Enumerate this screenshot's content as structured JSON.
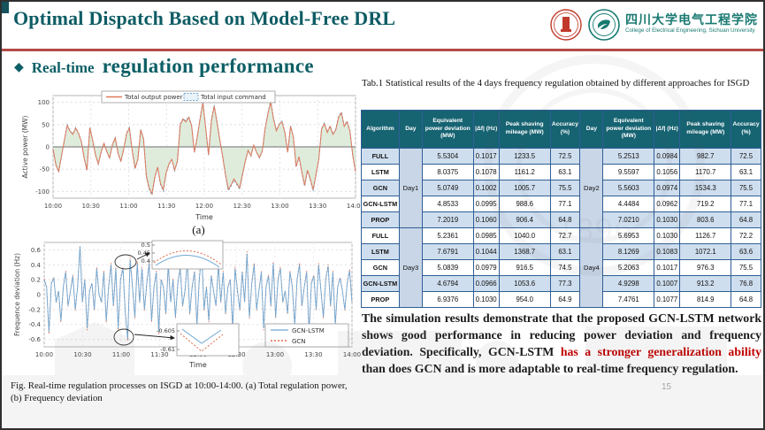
{
  "slide": {
    "title": "Optimal Dispatch Based on Model-Free DRL",
    "bullet_icon": "◆",
    "section_title_prefix": "Real-time",
    "section_title_rest": "regulation performance",
    "logo_text_cn": "四川大学电气工程学院",
    "logo_text_en": "College of Electrical Engineering, Sichuan University",
    "page_number": "15",
    "watermark_year": "1896"
  },
  "figure": {
    "sublabel_a": "(a)",
    "caption": "Fig. Real-time regulation processes on ISGD at 10:00-14:00. (a) Total regulation power, (b) Frequency deviation"
  },
  "table": {
    "caption": "Tab.1 Statistical results of the 4 days frequency regulation obtained by different approaches for ISGD",
    "columns": [
      "Algorithm",
      "Day",
      "Equivalent power deviation (MW)",
      "|Δf| (Hz)",
      "Peak shaving mileage (MW)",
      "Accuracy (%)",
      "Day",
      "Equivalent power deviation (MW)",
      "|Δf| (Hz)",
      "Peak shaving mileage (MW)",
      "Accuracy (%)"
    ],
    "groups": [
      {
        "left_day": "Day1",
        "right_day": "Day2",
        "rows": [
          {
            "algorithm": "FULL",
            "left": [
              "5.5304",
              "0.1017",
              "1233.5",
              "72.5"
            ],
            "right": [
              "5.2513",
              "0.0984",
              "982.7",
              "72.5"
            ]
          },
          {
            "algorithm": "LSTM",
            "left": [
              "8.0375",
              "0.1078",
              "1161.2",
              "63.1"
            ],
            "right": [
              "9.5597",
              "0.1056",
              "1170.7",
              "63.1"
            ]
          },
          {
            "algorithm": "GCN",
            "left": [
              "5.0749",
              "0.1002",
              "1005.7",
              "75.5"
            ],
            "right": [
              "5.5603",
              "0.0974",
              "1534.3",
              "75.5"
            ]
          },
          {
            "algorithm": "GCN-LSTM",
            "left": [
              "4.8533",
              "0.0995",
              "988.6",
              "77.1"
            ],
            "right": [
              "4.4484",
              "0.0962",
              "719.2",
              "77.1"
            ]
          },
          {
            "algorithm": "PROP",
            "left": [
              "7.2019",
              "0.1060",
              "906.4",
              "64.8"
            ],
            "right": [
              "7.0210",
              "0.1030",
              "803.6",
              "64.8"
            ]
          }
        ]
      },
      {
        "left_day": "Day3",
        "right_day": "Day4",
        "rows": [
          {
            "algorithm": "FULL",
            "left": [
              "5.2361",
              "0.0985",
              "1040.0",
              "72.7"
            ],
            "right": [
              "5.6953",
              "0.1030",
              "1126.7",
              "72.2"
            ]
          },
          {
            "algorithm": "LSTM",
            "left": [
              "7.6791",
              "0.1044",
              "1368.7",
              "63.1"
            ],
            "right": [
              "8.1269",
              "0.1083",
              "1072.1",
              "63.6"
            ]
          },
          {
            "algorithm": "GCN",
            "left": [
              "5.0839",
              "0.0979",
              "916.5",
              "74.5"
            ],
            "right": [
              "5.2063",
              "0.1017",
              "976.3",
              "75.5"
            ]
          },
          {
            "algorithm": "GCN-LSTM",
            "left": [
              "4.6794",
              "0.0966",
              "1053.6",
              "77.3"
            ],
            "right": [
              "4.9298",
              "0.1007",
              "913.2",
              "76.8"
            ]
          },
          {
            "algorithm": "PROP",
            "left": [
              "6.9376",
              "0.1030",
              "954.0",
              "64.9"
            ],
            "right": [
              "7.4761",
              "0.1077",
              "814.9",
              "64.8"
            ]
          }
        ]
      }
    ]
  },
  "summary": {
    "part1": "The simulation results demonstrate that the proposed GCN-LSTM network shows good performance in reducing power deviation and frequency deviation. Specifically, GCN-LSTM ",
    "highlight": "has a stronger generalization ability",
    "part2": " than does GCN and is more adaptable to real-time frequency regulation."
  },
  "colors": {
    "accent_teal": "#0d5f66",
    "table_header": "#166372",
    "row_alt": "#cfdeee",
    "divider_red": "#b24a46",
    "highlight_red": "#c00000",
    "series_orange": "#e0795a",
    "series_blue": "#6fa8d4",
    "area_green": "#dcead8"
  },
  "chart_data": [
    {
      "type": "area",
      "title": "",
      "ylabel": "Active power (MW)",
      "xlabel": "Time",
      "x_ticks": [
        "10:00",
        "10:30",
        "11:00",
        "11:30",
        "12:00",
        "12:30",
        "13:00",
        "13:30",
        "14:00"
      ],
      "ylim": [
        -115,
        115
      ],
      "y_ticks": [
        -100,
        -50,
        0,
        50,
        100
      ],
      "grid": true,
      "legend_position": "top-center",
      "series": [
        {
          "name": "Total output power",
          "style": "solid-orange"
        },
        {
          "name": "Total input command",
          "style": "dashed-blue-fill-green"
        }
      ],
      "values": [
        -5,
        -40,
        -55,
        -20,
        15,
        48,
        35,
        28,
        42,
        30,
        12,
        -25,
        -52,
        43,
        15,
        -18,
        -38,
        -12,
        8,
        -10,
        -25,
        5,
        20,
        -15,
        -32,
        -5,
        30,
        42,
        -8,
        -48,
        -28,
        38,
        18,
        -65,
        -92,
        -105,
        -68,
        -45,
        -82,
        -96,
        -58,
        -38,
        -28,
        -52,
        -32,
        50,
        62,
        56,
        66,
        48,
        -12,
        22,
        62,
        98,
        42,
        -18,
        58,
        91,
        55,
        15,
        -22,
        -62,
        -95,
        -85,
        -72,
        -82,
        -92,
        -62,
        -32,
        -8,
        -20,
        4,
        -12,
        -24,
        -10,
        40,
        74,
        100,
        62,
        36,
        50,
        56,
        32,
        -12,
        46,
        22,
        -44,
        -22,
        -56,
        -86,
        -52,
        -72,
        -96,
        -62,
        -28,
        40,
        52,
        32,
        46,
        28,
        38,
        66,
        76,
        46,
        56,
        36,
        -18,
        -55
      ]
    },
    {
      "type": "line",
      "title": "",
      "ylabel": "Frequence deviation (Hz)",
      "xlabel": "Time",
      "x_ticks": [
        "10:00",
        "10:30",
        "11:00",
        "11:30",
        "12:00",
        "12:30",
        "13:00",
        "13:30",
        "14:00"
      ],
      "ylim": [
        -0.7,
        0.7
      ],
      "y_ticks": [
        -0.6,
        -0.4,
        -0.2,
        0,
        0.2,
        0.4,
        0.6
      ],
      "grid": true,
      "legend_position": "right-bottom",
      "series": [
        {
          "name": "GCN-LSTM",
          "style": "solid-blue"
        },
        {
          "name": "GCN",
          "style": "dotted-red",
          "scale": 1.06
        }
      ],
      "values": [
        0.2,
        0.1,
        -0.5,
        0.15,
        0.22,
        -0.1,
        0.05,
        -0.35,
        0.1,
        0.3,
        -0.15,
        0.05,
        0.25,
        -0.2,
        0.1,
        0.65,
        -0.1,
        0.2,
        -0.45,
        0.05,
        0.15,
        -0.2,
        0.35,
        0,
        -0.1,
        0.3,
        -0.35,
        0.1,
        0.4,
        -0.15,
        0.35,
        -0.45,
        0.2,
        0.35,
        -0.25,
        -0.6,
        0.47,
        0.1,
        -0.3,
        0.42,
        -0.1,
        0.35,
        -0.2,
        0.15,
        0.42,
        -0.35,
        0.1,
        0.3,
        -0.5,
        0.2,
        0.1,
        -0.25,
        0.4,
        -0.1,
        0.2,
        -0.3,
        0.15,
        0.35,
        -0.15,
        0.05,
        0.45,
        -0.25,
        0.1,
        0.3,
        -0.4,
        0.2,
        0.55,
        -0.2,
        0.1,
        -0.35,
        0.25,
        0.05,
        -0.15,
        0.4,
        -0.1,
        0.3,
        -0.25,
        0.1,
        0.2,
        -0.45,
        0.35,
        0.05,
        -0.2,
        0.3,
        -0.1,
        0.55,
        -0.3,
        0.15,
        0.4,
        -0.2,
        0.05,
        0.3,
        -0.45,
        0.1,
        0.25,
        -0.15,
        0.42,
        -0.3,
        0.2,
        0.35,
        -0.1,
        0.05,
        -0.25,
        0.3,
        0.1,
        -0.4,
        0.2,
        0.4,
        -0.15,
        0.1,
        0.3,
        -0.5,
        0.15,
        0.25,
        -0.2,
        0.4,
        0.05,
        -0.3,
        0.2,
        0.38,
        -0.15,
        0.3,
        -0.4,
        0.1,
        0.22,
        0.05,
        -0.2,
        0.15,
        0.32,
        -0.1
      ],
      "insets": [
        {
          "ticks": [
            "0.5",
            "0.45",
            "0.4"
          ]
        },
        {
          "ticks": [
            "-0.605",
            "-0.61"
          ]
        }
      ]
    }
  ]
}
